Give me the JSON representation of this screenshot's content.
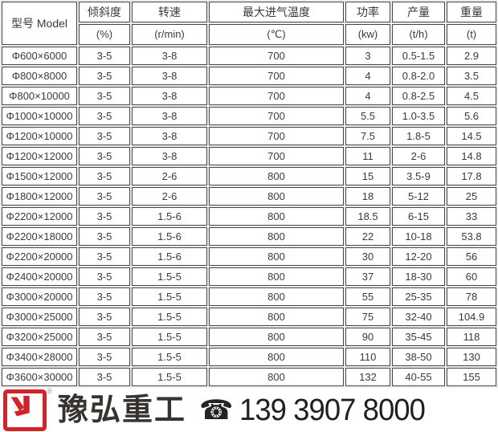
{
  "table": {
    "model_header": "型号  Model",
    "columns": [
      {
        "label": "倾斜度",
        "unit": "(%)"
      },
      {
        "label": "转速",
        "unit": "(r/min)"
      },
      {
        "label": "最大进气温度",
        "unit": "(℃)"
      },
      {
        "label": "功率",
        "unit": "(kw)"
      },
      {
        "label": "产量",
        "unit": "(t/h)"
      },
      {
        "label": "重量",
        "unit": "(t)"
      }
    ],
    "rows": [
      [
        "Φ600×6000",
        "3-5",
        "3-8",
        "700",
        "3",
        "0.5-1.5",
        "2.9"
      ],
      [
        "Φ800×8000",
        "3-5",
        "3-8",
        "700",
        "4",
        "0.8-2.0",
        "3.5"
      ],
      [
        "Φ800×10000",
        "3-5",
        "3-8",
        "700",
        "4",
        "0.8-2.5",
        "4.5"
      ],
      [
        "Φ1000×10000",
        "3-5",
        "3-8",
        "700",
        "5.5",
        "1.0-3.5",
        "5.6"
      ],
      [
        "Φ1200×10000",
        "3-5",
        "3-8",
        "700",
        "7.5",
        "1.8-5",
        "14.5"
      ],
      [
        "Φ1200×12000",
        "3-5",
        "3-8",
        "700",
        "11",
        "2-6",
        "14.8"
      ],
      [
        "Φ1500×12000",
        "3-5",
        "2-6",
        "800",
        "15",
        "3.5-9",
        "17.8"
      ],
      [
        "Φ1800×12000",
        "3-5",
        "2-6",
        "800",
        "18",
        "5-12",
        "25"
      ],
      [
        "Φ2200×12000",
        "3-5",
        "1.5-6",
        "800",
        "18.5",
        "6-15",
        "33"
      ],
      [
        "Φ2200×18000",
        "3-5",
        "1.5-6",
        "800",
        "22",
        "10-18",
        "53.8"
      ],
      [
        "Φ2200×20000",
        "3-5",
        "1.5-6",
        "800",
        "30",
        "12-20",
        "56"
      ],
      [
        "Φ2400×20000",
        "3-5",
        "1.5-5",
        "800",
        "37",
        "18-30",
        "60"
      ],
      [
        "Φ3000×20000",
        "3-5",
        "1.5-5",
        "800",
        "55",
        "25-35",
        "78"
      ],
      [
        "Φ3000×25000",
        "3-5",
        "1.5-5",
        "800",
        "75",
        "32-40",
        "104.9"
      ],
      [
        "Φ3200×25000",
        "3-5",
        "1.5-5",
        "800",
        "90",
        "35-45",
        "118"
      ],
      [
        "Φ3400×28000",
        "3-5",
        "1.5-5",
        "800",
        "110",
        "38-50",
        "130"
      ],
      [
        "Φ3600×30000",
        "3-5",
        "1.5-5",
        "800",
        "132",
        "40-55",
        "155"
      ]
    ]
  },
  "footer": {
    "brand": "豫弘重工",
    "phone_icon": "☎",
    "phone": "139 3907 8000",
    "registered_mark": "®"
  },
  "colors": {
    "accent_red": "#d2232a",
    "table_border": "#474747",
    "cell_text": "#3a3a3a",
    "footer_text": "#211f1d"
  },
  "chart_data": {
    "type": "table",
    "title": "型号 Model 规格表",
    "columns": [
      "型号 Model",
      "倾斜度 (%)",
      "转速 (r/min)",
      "最大进气温度 (℃)",
      "功率 (kw)",
      "产量 (t/h)",
      "重量 (t)"
    ],
    "rows": [
      [
        "Φ600×6000",
        "3-5",
        "3-8",
        "700",
        "3",
        "0.5-1.5",
        "2.9"
      ],
      [
        "Φ800×8000",
        "3-5",
        "3-8",
        "700",
        "4",
        "0.8-2.0",
        "3.5"
      ],
      [
        "Φ800×10000",
        "3-5",
        "3-8",
        "700",
        "4",
        "0.8-2.5",
        "4.5"
      ],
      [
        "Φ1000×10000",
        "3-5",
        "3-8",
        "700",
        "5.5",
        "1.0-3.5",
        "5.6"
      ],
      [
        "Φ1200×10000",
        "3-5",
        "3-8",
        "700",
        "7.5",
        "1.8-5",
        "14.5"
      ],
      [
        "Φ1200×12000",
        "3-5",
        "3-8",
        "700",
        "11",
        "2-6",
        "14.8"
      ],
      [
        "Φ1500×12000",
        "3-5",
        "2-6",
        "800",
        "15",
        "3.5-9",
        "17.8"
      ],
      [
        "Φ1800×12000",
        "3-5",
        "2-6",
        "800",
        "18",
        "5-12",
        "25"
      ],
      [
        "Φ2200×12000",
        "3-5",
        "1.5-6",
        "800",
        "18.5",
        "6-15",
        "33"
      ],
      [
        "Φ2200×18000",
        "3-5",
        "1.5-6",
        "800",
        "22",
        "10-18",
        "53.8"
      ],
      [
        "Φ2200×20000",
        "3-5",
        "1.5-6",
        "800",
        "30",
        "12-20",
        "56"
      ],
      [
        "Φ2400×20000",
        "3-5",
        "1.5-5",
        "800",
        "37",
        "18-30",
        "60"
      ],
      [
        "Φ3000×20000",
        "3-5",
        "1.5-5",
        "800",
        "55",
        "25-35",
        "78"
      ],
      [
        "Φ3000×25000",
        "3-5",
        "1.5-5",
        "800",
        "75",
        "32-40",
        "104.9"
      ],
      [
        "Φ3200×25000",
        "3-5",
        "1.5-5",
        "800",
        "90",
        "35-45",
        "118"
      ],
      [
        "Φ3400×28000",
        "3-5",
        "1.5-5",
        "800",
        "110",
        "38-50",
        "130"
      ],
      [
        "Φ3600×30000",
        "3-5",
        "1.5-5",
        "800",
        "132",
        "40-55",
        "155"
      ]
    ]
  }
}
